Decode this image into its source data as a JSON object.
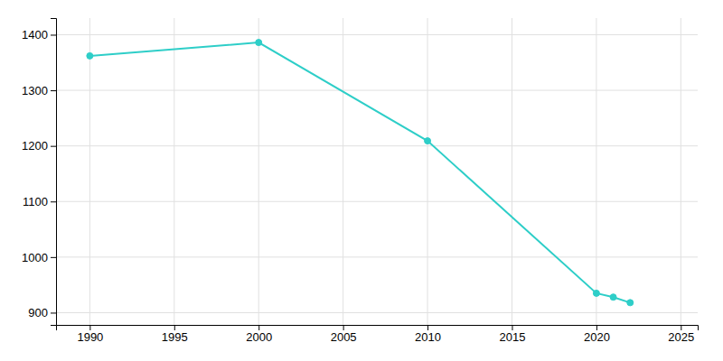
{
  "chart_data": {
    "type": "line",
    "x": [
      1990,
      2000,
      2010,
      2020,
      2021,
      2022
    ],
    "values": [
      1362,
      1386,
      1209,
      935,
      928,
      918
    ],
    "color": "#2ecec8",
    "marker": "circle",
    "xlim": [
      1988,
      2026
    ],
    "ylim": [
      878,
      1430
    ],
    "xticks": [
      1990,
      1995,
      2000,
      2005,
      2010,
      2015,
      2020,
      2025
    ],
    "yticks": [
      900,
      1000,
      1100,
      1200,
      1300,
      1400
    ],
    "grid": true
  }
}
